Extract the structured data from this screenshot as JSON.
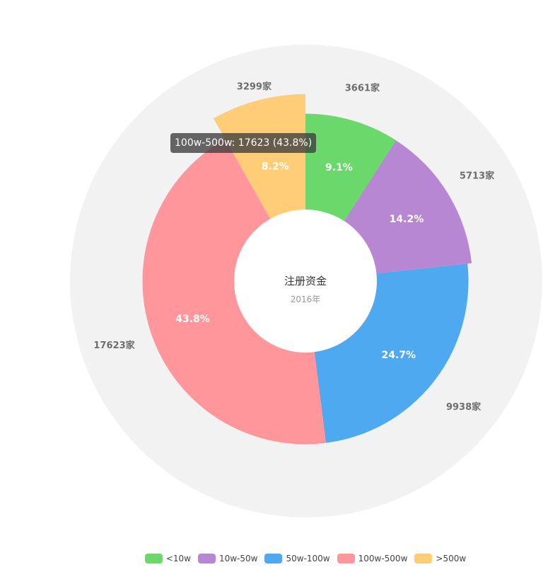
{
  "chart_data": {
    "type": "pie",
    "title": "注册资金",
    "subtitle": "2016年",
    "categories": [
      "<10w",
      "10w-50w",
      "50w-100w",
      "100w-500w",
      ">500w"
    ],
    "values": [
      3661,
      5713,
      9938,
      17623,
      3299
    ],
    "percent_labels": [
      "9.1%",
      "14.2%",
      "24.7%",
      "43.8%",
      "8.2%"
    ],
    "value_labels": [
      "3661家",
      "5713家",
      "9938家",
      "17623家",
      "3299家"
    ],
    "colors": [
      "#6ad86a",
      "#b887d4",
      "#4ea9f0",
      "#ff969c",
      "#ffcc77"
    ],
    "legend_position": "bottom",
    "tooltip": "100w-500w: 17623 (43.8%)"
  }
}
